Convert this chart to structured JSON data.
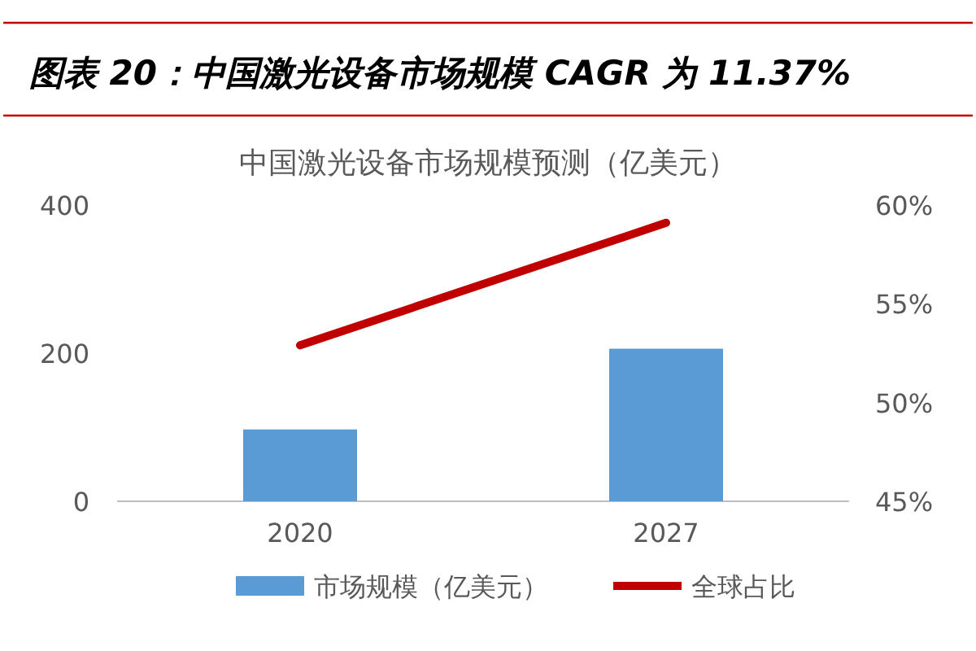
{
  "chart_data": {
    "type": "bar",
    "title": "图表 20：中国激光设备市场规模 CAGR 为 11.37%",
    "subtitle": "中国激光设备市场规模预测（亿美元）",
    "categories": [
      "2020",
      "2027"
    ],
    "series": [
      {
        "name": "市场规模（亿美元）",
        "color": "#5b9bd5",
        "values": [
          97,
          206
        ]
      },
      {
        "name": "全球占比",
        "type": "line",
        "axis": "y2",
        "color": "#c00000",
        "values": [
          52.9,
          59.1
        ]
      }
    ],
    "ylim": [
      0,
      400
    ],
    "yticks": [
      0,
      200,
      400
    ],
    "y2lim": [
      45,
      60
    ],
    "y2ticks": [
      {
        "value": 45,
        "label": "45%"
      },
      {
        "value": 50,
        "label": "50%"
      },
      {
        "value": 55,
        "label": "55%"
      },
      {
        "value": 60,
        "label": "60%"
      }
    ],
    "legend": "bottom",
    "grid": false,
    "marker": "none",
    "line_style": "solid"
  }
}
